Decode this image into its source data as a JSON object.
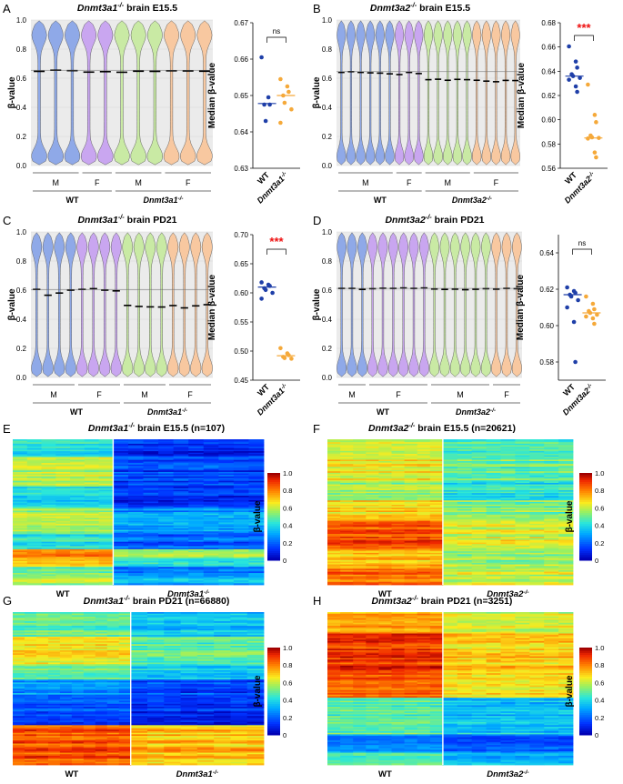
{
  "colors": {
    "m_wt": "#8fa9e8",
    "f_wt": "#c9a6f0",
    "m_ko": "#c9eaa4",
    "f_ko": "#f8c8a0",
    "wt_dot": "#1f3fa8",
    "ko_dot": "#f5a93a",
    "sig": "#ee1111"
  },
  "chart_data": [
    {
      "panel": "A",
      "type": "violin",
      "title": "Dnmt3a1-/- brain E15.5",
      "title_gene": "Dnmt3a1",
      "title_sup": "-/-",
      "title_rest": " brain E15.5",
      "ylabel": "β-value",
      "ylim": [
        0,
        1
      ],
      "yticks": [
        "0.0",
        "0.2",
        "0.4",
        "0.6",
        "0.8",
        "1.0"
      ],
      "sex_labels": [
        "M",
        "F",
        "M",
        "F"
      ],
      "group_labels": [
        "WT",
        "Dnmt3a1-/-"
      ],
      "groups": [
        "M_WT",
        "M_WT",
        "M_WT",
        "F_WT",
        "F_WT",
        "M_KO",
        "M_KO",
        "M_KO",
        "F_KO",
        "F_KO",
        "F_KO"
      ],
      "medians": [
        0.647,
        0.655,
        0.652,
        0.642,
        0.645,
        0.641,
        0.648,
        0.647,
        0.651,
        0.65,
        0.648
      ],
      "sex_spans": [
        [
          0,
          2
        ],
        [
          3,
          4
        ],
        [
          5,
          7
        ],
        [
          8,
          10
        ]
      ],
      "group_spans": [
        [
          0,
          4
        ],
        [
          5,
          10
        ]
      ],
      "scatter": {
        "ylabel": "Median β-value",
        "ylim": [
          0.63,
          0.67
        ],
        "yticks": [
          "0.63",
          "0.64",
          "0.65",
          "0.66",
          "0.67"
        ],
        "categories": [
          "WT",
          "Dnmt3a1-/-"
        ],
        "wt": [
          0.6605,
          0.6495,
          0.6475,
          0.6475,
          0.643
        ],
        "ko": [
          0.6545,
          0.6525,
          0.651,
          0.65,
          0.648,
          0.6462,
          0.6425
        ],
        "wt_median": 0.6478,
        "ko_median": 0.65,
        "significance": "ns"
      }
    },
    {
      "panel": "B",
      "type": "violin",
      "title": "Dnmt3a2-/- brain E15.5",
      "title_gene": "Dnmt3a2",
      "title_sup": "-/-",
      "title_rest": " brain E15.5",
      "ylabel": "β-value",
      "ylim": [
        0,
        1
      ],
      "yticks": [
        "0.0",
        "0.2",
        "0.4",
        "0.6",
        "0.8",
        "1.0"
      ],
      "sex_labels": [
        "M",
        "F",
        "M",
        "F"
      ],
      "group_labels": [
        "WT",
        "Dnmt3a2-/-"
      ],
      "groups": [
        "M_WT",
        "M_WT",
        "M_WT",
        "M_WT",
        "M_WT",
        "M_WT",
        "F_WT",
        "F_WT",
        "F_WT",
        "M_KO",
        "M_KO",
        "M_KO",
        "M_KO",
        "M_KO",
        "F_KO",
        "F_KO",
        "F_KO",
        "F_KO",
        "F_KO"
      ],
      "medians": [
        0.64,
        0.645,
        0.64,
        0.637,
        0.635,
        0.63,
        0.625,
        0.64,
        0.632,
        0.59,
        0.593,
        0.586,
        0.592,
        0.59,
        0.586,
        0.58,
        0.576,
        0.585,
        0.584
      ],
      "sex_spans": [
        [
          0,
          5
        ],
        [
          6,
          8
        ],
        [
          9,
          13
        ],
        [
          14,
          18
        ]
      ],
      "group_spans": [
        [
          0,
          8
        ],
        [
          9,
          18
        ]
      ],
      "scatter": {
        "ylabel": "Median β-value",
        "ylim": [
          0.56,
          0.68
        ],
        "yticks": [
          "0.56",
          "0.58",
          "0.60",
          "0.62",
          "0.64",
          "0.66",
          "0.68"
        ],
        "categories": [
          "WT",
          "Dnmt3a2-/-"
        ],
        "wt": [
          0.6605,
          0.648,
          0.643,
          0.6375,
          0.636,
          0.6345,
          0.633,
          0.6275,
          0.623
        ],
        "ko": [
          0.629,
          0.604,
          0.598,
          0.587,
          0.5855,
          0.585,
          0.5845,
          0.573,
          0.569
        ],
        "wt_median": 0.636,
        "ko_median": 0.585,
        "significance": "***"
      }
    },
    {
      "panel": "C",
      "type": "violin",
      "title": "Dnmt3a1-/- brain PD21",
      "title_gene": "Dnmt3a1",
      "title_sup": "-/-",
      "title_rest": " brain PD21",
      "ylabel": "β-value",
      "ylim": [
        0,
        1
      ],
      "yticks": [
        "0.0",
        "0.2",
        "0.4",
        "0.6",
        "0.8",
        "1.0"
      ],
      "sex_labels": [
        "M",
        "F",
        "M",
        "F"
      ],
      "group_labels": [
        "WT",
        "Dnmt3a1-/-"
      ],
      "groups": [
        "M_WT",
        "M_WT",
        "M_WT",
        "M_WT",
        "F_WT",
        "F_WT",
        "F_WT",
        "F_WT",
        "M_KO",
        "M_KO",
        "M_KO",
        "M_KO",
        "F_KO",
        "F_KO",
        "F_KO",
        "F_KO"
      ],
      "medians": [
        0.605,
        0.565,
        0.58,
        0.6,
        0.605,
        0.61,
        0.6,
        0.595,
        0.495,
        0.488,
        0.485,
        0.484,
        0.494,
        0.478,
        0.492,
        0.5
      ],
      "sex_spans": [
        [
          0,
          3
        ],
        [
          4,
          7
        ],
        [
          8,
          11
        ],
        [
          12,
          15
        ]
      ],
      "group_spans": [
        [
          0,
          7
        ],
        [
          8,
          15
        ]
      ],
      "scatter": {
        "ylabel": "Median β-value",
        "ylim": [
          0.45,
          0.7
        ],
        "yticks": [
          "0.45",
          "0.50",
          "0.55",
          "0.60",
          "0.65",
          "0.70"
        ],
        "categories": [
          "WT",
          "Dnmt3a1-/-"
        ],
        "wt": [
          0.618,
          0.614,
          0.612,
          0.608,
          0.605,
          0.6,
          0.59
        ],
        "ko": [
          0.505,
          0.496,
          0.493,
          0.49,
          0.488,
          0.487
        ],
        "wt_median": 0.61,
        "ko_median": 0.492,
        "significance": "***"
      }
    },
    {
      "panel": "D",
      "type": "violin",
      "title": "Dnmt3a2-/- brain PD21",
      "title_gene": "Dnmt3a2",
      "title_sup": "-/-",
      "title_rest": " brain PD21",
      "ylabel": "β-value",
      "ylim": [
        0,
        1
      ],
      "yticks": [
        "0.0",
        "0.2",
        "0.4",
        "0.6",
        "0.8",
        "1.0"
      ],
      "sex_labels": [
        "M",
        "F",
        "M",
        "F"
      ],
      "group_labels": [
        "WT",
        "Dnmt3a2-/-"
      ],
      "groups": [
        "M_WT",
        "M_WT",
        "M_WT",
        "F_WT",
        "F_WT",
        "F_WT",
        "F_WT",
        "F_WT",
        "F_WT",
        "M_KO",
        "M_KO",
        "M_KO",
        "M_KO",
        "M_KO",
        "M_KO",
        "F_KO",
        "F_KO",
        "F_KO"
      ],
      "medians": [
        0.612,
        0.612,
        0.605,
        0.61,
        0.613,
        0.612,
        0.615,
        0.612,
        0.615,
        0.608,
        0.605,
        0.607,
        0.603,
        0.606,
        0.61,
        0.607,
        0.612,
        0.61
      ],
      "sex_spans": [
        [
          0,
          2
        ],
        [
          3,
          8
        ],
        [
          9,
          14
        ],
        [
          15,
          17
        ]
      ],
      "group_spans": [
        [
          0,
          8
        ],
        [
          9,
          17
        ]
      ],
      "scatter": {
        "ylabel": "Median β-value",
        "ylim": [
          0.57,
          0.65
        ],
        "yticks": [
          "0.58",
          "0.60",
          "0.62",
          "0.64"
        ],
        "categories": [
          "WT",
          "Dnmt3a2-/-"
        ],
        "wt": [
          0.621,
          0.619,
          0.618,
          0.617,
          0.616,
          0.614,
          0.61,
          0.602,
          0.58
        ],
        "ko": [
          0.616,
          0.612,
          0.609,
          0.608,
          0.607,
          0.606,
          0.605,
          0.604,
          0.601
        ],
        "wt_median": 0.617,
        "ko_median": 0.607,
        "significance": "ns"
      }
    },
    {
      "panel": "E",
      "type": "heatmap",
      "title": "Dnmt3a1-/- brain E15.5 (n=107)",
      "title_gene": "Dnmt3a1",
      "title_sup": "-/-",
      "title_rest": " brain E15.5 (n=107)",
      "group_labels": [
        "WT",
        "Dnmt3a1-/-"
      ],
      "colorbar_label": "β-value",
      "colorbar_ticks": [
        "1.0",
        "0.8",
        "0.6",
        "0.4",
        "0.2",
        "0"
      ],
      "wt_cols": 7,
      "ko_cols": 10,
      "blocks": [
        {
          "rows": 12,
          "wt": 0.4,
          "ko": 0.1
        },
        {
          "rows": 20,
          "wt": 0.58,
          "ko": 0.14
        },
        {
          "rows": 14,
          "wt": 0.38,
          "ko": 0.1
        },
        {
          "rows": 18,
          "wt": 0.56,
          "ko": 0.28
        },
        {
          "rows": 10,
          "wt": 0.42,
          "ko": 0.2
        },
        {
          "rows": 6,
          "wt": 0.8,
          "ko": 0.55
        },
        {
          "rows": 6,
          "wt": 0.72,
          "ko": 0.42
        },
        {
          "rows": 6,
          "wt": 0.48,
          "ko": 0.22
        },
        {
          "rows": 6,
          "wt": 0.58,
          "ko": 0.32
        }
      ]
    },
    {
      "panel": "F",
      "type": "heatmap",
      "title": "Dnmt3a2-/- brain E15.5 (n=20621)",
      "title_gene": "Dnmt3a2",
      "title_sup": "-/-",
      "title_rest": " brain E15.5 (n=20621)",
      "group_labels": [
        "WT",
        "Dnmt3a2-/-"
      ],
      "colorbar_label": "β-value",
      "colorbar_ticks": [
        "1.0",
        "0.8",
        "0.6",
        "0.4",
        "0.2",
        "0"
      ],
      "wt_cols": 9,
      "ko_cols": 9,
      "blocks": [
        {
          "rows": 14,
          "wt": 0.6,
          "ko": 0.45
        },
        {
          "rows": 14,
          "wt": 0.66,
          "ko": 0.5
        },
        {
          "rows": 14,
          "wt": 0.55,
          "ko": 0.4
        },
        {
          "rows": 14,
          "wt": 0.68,
          "ko": 0.52
        },
        {
          "rows": 20,
          "wt": 0.86,
          "ko": 0.62
        },
        {
          "rows": 12,
          "wt": 0.72,
          "ko": 0.55
        },
        {
          "rows": 12,
          "wt": 0.82,
          "ko": 0.6
        }
      ]
    },
    {
      "panel": "G",
      "type": "heatmap",
      "title": "Dnmt3a1-/- brain PD21 (n=66880)",
      "title_gene": "Dnmt3a1",
      "title_sup": "-/-",
      "title_rest": " brain PD21 (n=66880)",
      "group_labels": [
        "WT",
        "Dnmt3a1-/-"
      ],
      "colorbar_label": "β-value",
      "colorbar_ticks": [
        "1.0",
        "0.8",
        "0.6",
        "0.4",
        "0.2",
        "0"
      ],
      "wt_cols": 10,
      "ko_cols": 8,
      "blocks": [
        {
          "rows": 16,
          "wt": 0.48,
          "ko": 0.34
        },
        {
          "rows": 18,
          "wt": 0.66,
          "ko": 0.48
        },
        {
          "rows": 10,
          "wt": 0.52,
          "ko": 0.38
        },
        {
          "rows": 10,
          "wt": 0.28,
          "ko": 0.15
        },
        {
          "rows": 20,
          "wt": 0.16,
          "ko": 0.1
        },
        {
          "rows": 26,
          "wt": 0.86,
          "ko": 0.72
        }
      ]
    },
    {
      "panel": "H",
      "type": "heatmap",
      "title": "Dnmt3a2-/- brain PD21 (n=3251)",
      "title_gene": "Dnmt3a2",
      "title_sup": "-/-",
      "title_rest": " brain PD21 (n=3251)",
      "group_labels": [
        "WT",
        "Dnmt3a2-/-"
      ],
      "colorbar_label": "β-value",
      "colorbar_ticks": [
        "1.0",
        "0.8",
        "0.6",
        "0.4",
        "0.2",
        "0"
      ],
      "wt_cols": 9,
      "ko_cols": 9,
      "blocks": [
        {
          "rows": 14,
          "wt": 0.76,
          "ko": 0.62
        },
        {
          "rows": 26,
          "wt": 0.9,
          "ko": 0.7
        },
        {
          "rows": 16,
          "wt": 0.84,
          "ko": 0.66
        },
        {
          "rows": 24,
          "wt": 0.48,
          "ko": 0.34
        },
        {
          "rows": 12,
          "wt": 0.26,
          "ko": 0.18
        },
        {
          "rows": 8,
          "wt": 0.45,
          "ko": 0.3
        }
      ]
    }
  ]
}
